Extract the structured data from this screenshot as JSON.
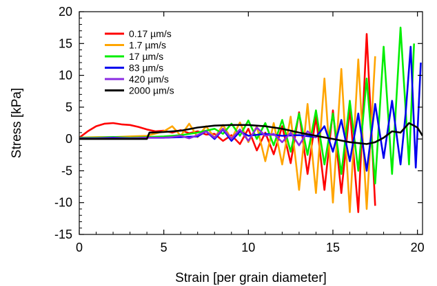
{
  "chart_data": {
    "type": "line",
    "xlabel": "Strain [per grain diameter]",
    "ylabel": "Stress [kPa]",
    "xlim": [
      0,
      20.3
    ],
    "ylim": [
      -15,
      20
    ],
    "xticks": [
      0,
      5,
      10,
      15,
      20
    ],
    "yticks": [
      -15,
      -10,
      -5,
      0,
      5,
      10,
      15,
      20
    ],
    "xtick_labels": [
      "0",
      "5",
      "10",
      "15",
      "20"
    ],
    "ytick_labels": [
      "-15",
      "-10",
      "-5",
      "0",
      "5",
      "10",
      "15",
      "20"
    ],
    "grid": false,
    "legend_position": "top-left",
    "series": [
      {
        "name": "0.17 µm/s",
        "color": "#ff0000",
        "x": [
          0,
          0.5,
          1,
          1.5,
          2,
          2.5,
          3,
          3.5,
          4,
          4.5,
          5,
          5.5,
          6,
          6.5,
          7,
          7.5,
          8,
          8.5,
          9,
          9.5,
          10,
          10.5,
          11,
          11.5,
          12,
          12.5,
          13,
          13.5,
          14,
          14.5,
          15,
          15.5,
          16,
          16.5,
          17,
          17.5
        ],
        "y": [
          0.2,
          1.2,
          2.0,
          2.4,
          2.5,
          2.3,
          2.2,
          1.9,
          1.5,
          1.2,
          1.3,
          1.0,
          1.4,
          0.9,
          1.2,
          0.7,
          0.8,
          -0.3,
          0.6,
          -0.8,
          1.6,
          -1.8,
          1.0,
          -2.4,
          2.0,
          -3.8,
          4.2,
          -5.5,
          3.5,
          -8.0,
          4.5,
          -8.5,
          4.8,
          -11.5,
          16.5,
          -10.5
        ]
      },
      {
        "name": "1.7 µm/s",
        "color": "#ffa500",
        "x": [
          0,
          1,
          2,
          3,
          4,
          5,
          5.5,
          6,
          6.5,
          7,
          7.5,
          8,
          8.5,
          9,
          9.5,
          10,
          10.5,
          11,
          11.5,
          12,
          12.5,
          13,
          13.5,
          14,
          14.5,
          15,
          15.5,
          16,
          16.5,
          17,
          17.5
        ],
        "y": [
          0.2,
          0.3,
          0.3,
          0.4,
          0.5,
          1.2,
          2.0,
          0.5,
          2.4,
          0.3,
          2.0,
          0.2,
          2.2,
          0.0,
          2.6,
          -0.5,
          2.0,
          -3.5,
          2.5,
          -4.0,
          3.5,
          -8.0,
          5.5,
          -8.5,
          9.5,
          -10.0,
          11.0,
          -11.5,
          12.5,
          -11.0,
          13.0
        ]
      },
      {
        "name": "17 µm/s",
        "color": "#00ee00",
        "x": [
          0,
          1,
          2,
          3,
          4,
          5,
          6,
          7,
          8,
          8.5,
          9,
          9.5,
          10,
          10.5,
          11,
          11.5,
          12,
          12.5,
          13,
          13.5,
          14,
          14.5,
          15,
          15.5,
          16,
          16.5,
          17,
          17.5,
          18,
          18.5,
          19,
          19.5,
          19.8
        ],
        "y": [
          0.2,
          0.2,
          0.3,
          0.2,
          0.3,
          0.4,
          0.6,
          1.0,
          1.6,
          0.8,
          2.4,
          0.5,
          2.9,
          0.0,
          2.5,
          -1.0,
          3.0,
          -2.0,
          4.0,
          -2.5,
          4.5,
          -4.0,
          4.0,
          -5.5,
          6.0,
          -5.0,
          9.5,
          -7.0,
          14.5,
          -5.5,
          17.5,
          -4.0,
          15.0
        ]
      },
      {
        "name": "83 µm/s",
        "color": "#0000ee",
        "x": [
          0,
          1,
          2,
          3,
          4,
          5,
          6,
          7,
          7.5,
          8,
          8.5,
          9,
          9.5,
          10,
          11,
          12,
          13,
          14,
          14.5,
          15,
          15.5,
          16,
          16.5,
          17,
          17.5,
          18,
          18.5,
          19,
          19.3,
          19.6,
          19.9,
          20.2
        ],
        "y": [
          0.1,
          0.1,
          0.2,
          0.1,
          0.2,
          0.2,
          0.3,
          0.4,
          1.2,
          0.0,
          1.5,
          -0.3,
          1.2,
          0.5,
          0.8,
          0.5,
          0.6,
          0.3,
          2.0,
          -2.0,
          3.0,
          -3.5,
          4.0,
          -5.0,
          5.5,
          -3.0,
          6.0,
          -4.0,
          4.0,
          14.5,
          -4.5,
          12.0
        ]
      },
      {
        "name": "420 µm/s",
        "color": "#8a2be2",
        "x": [
          0,
          1,
          2,
          3,
          4,
          5,
          5.5,
          6,
          6.5,
          7,
          7.5,
          8,
          8.5,
          9,
          9.5,
          10,
          10.5,
          11,
          11.5,
          12,
          12.5,
          13,
          13.5,
          14
        ],
        "y": [
          0.1,
          0.1,
          0.1,
          0.1,
          0.2,
          0.2,
          0.3,
          0.5,
          0.1,
          0.6,
          1.2,
          0.2,
          1.6,
          0.0,
          1.5,
          -0.3,
          1.8,
          0.5,
          0.8,
          -0.5,
          1.0,
          -1.0,
          1.2,
          0.2
        ]
      },
      {
        "name": "2000 µm/s",
        "color": "#000000",
        "x": [
          0,
          1,
          2,
          3,
          4,
          4.15,
          5,
          6,
          7,
          8,
          9,
          10,
          11,
          12,
          13,
          14,
          15,
          16,
          17,
          17.5,
          18,
          18.5,
          19,
          19.5,
          20,
          20.3
        ],
        "y": [
          0.0,
          0.0,
          0.0,
          0.0,
          0.0,
          1.0,
          1.1,
          1.3,
          1.8,
          2.1,
          2.2,
          2.2,
          2.0,
          1.6,
          1.0,
          0.5,
          0.0,
          -0.5,
          -0.8,
          -0.5,
          0.2,
          1.2,
          1.0,
          2.5,
          1.8,
          0.5
        ]
      }
    ]
  }
}
